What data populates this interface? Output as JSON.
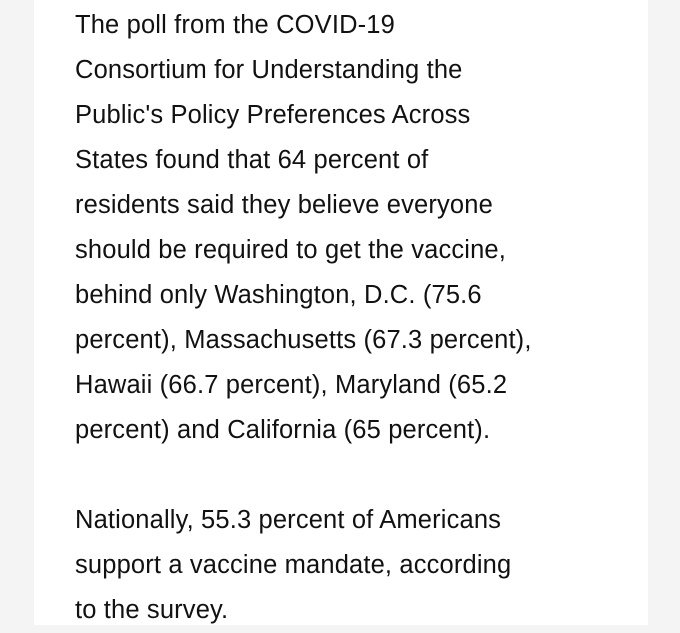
{
  "article": {
    "paragraphs": [
      {
        "lines": [
          "The poll from the COVID-19",
          "Consortium for Understanding the",
          "Public's Policy Preferences Across",
          "States found that 64 percent of",
          "residents said they believe everyone",
          "should be required to get the vaccine,",
          "behind only Washington, D.C. (75.6",
          "percent), Massachusetts (67.3 percent),",
          "Hawaii (66.7 percent), Maryland (65.2",
          "percent) and California (65 percent)."
        ]
      },
      {
        "lines": [
          "Nationally, 55.3 percent of Americans",
          "support a vaccine mandate, according",
          "to the survey."
        ]
      }
    ]
  }
}
